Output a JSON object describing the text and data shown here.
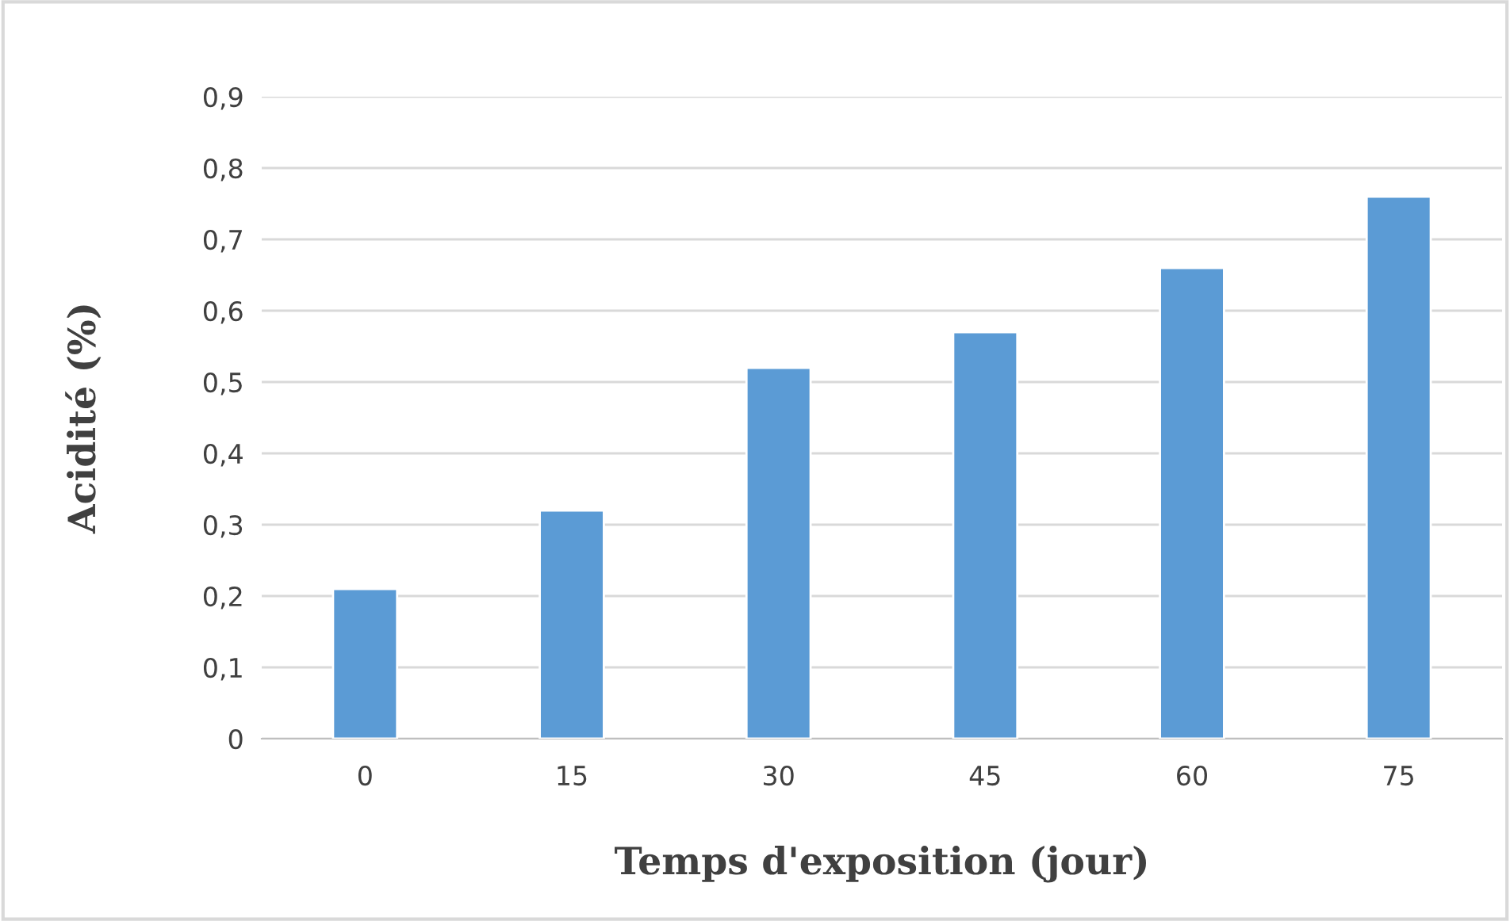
{
  "chart_data": {
    "type": "bar",
    "xlabel": "Temps d'exposition (jour)",
    "ylabel": "Acidité (%)",
    "categories": [
      "0",
      "15",
      "30",
      "45",
      "60",
      "75"
    ],
    "values": [
      0.21,
      0.32,
      0.52,
      0.57,
      0.66,
      0.76
    ],
    "color": "#5b9bd5",
    "ylim": [
      0,
      0.9
    ],
    "yticks": [
      {
        "value": 0,
        "label": "0"
      },
      {
        "value": 0.1,
        "label": "0,1"
      },
      {
        "value": 0.2,
        "label": "0,2"
      },
      {
        "value": 0.3,
        "label": "0,3"
      },
      {
        "value": 0.4,
        "label": "0,4"
      },
      {
        "value": 0.5,
        "label": "0,5"
      },
      {
        "value": 0.6,
        "label": "0,6"
      },
      {
        "value": 0.7,
        "label": "0,7"
      },
      {
        "value": 0.8,
        "label": "0,8"
      },
      {
        "value": 0.9,
        "label": "0,9"
      }
    ],
    "grid": "y",
    "legend": false
  }
}
